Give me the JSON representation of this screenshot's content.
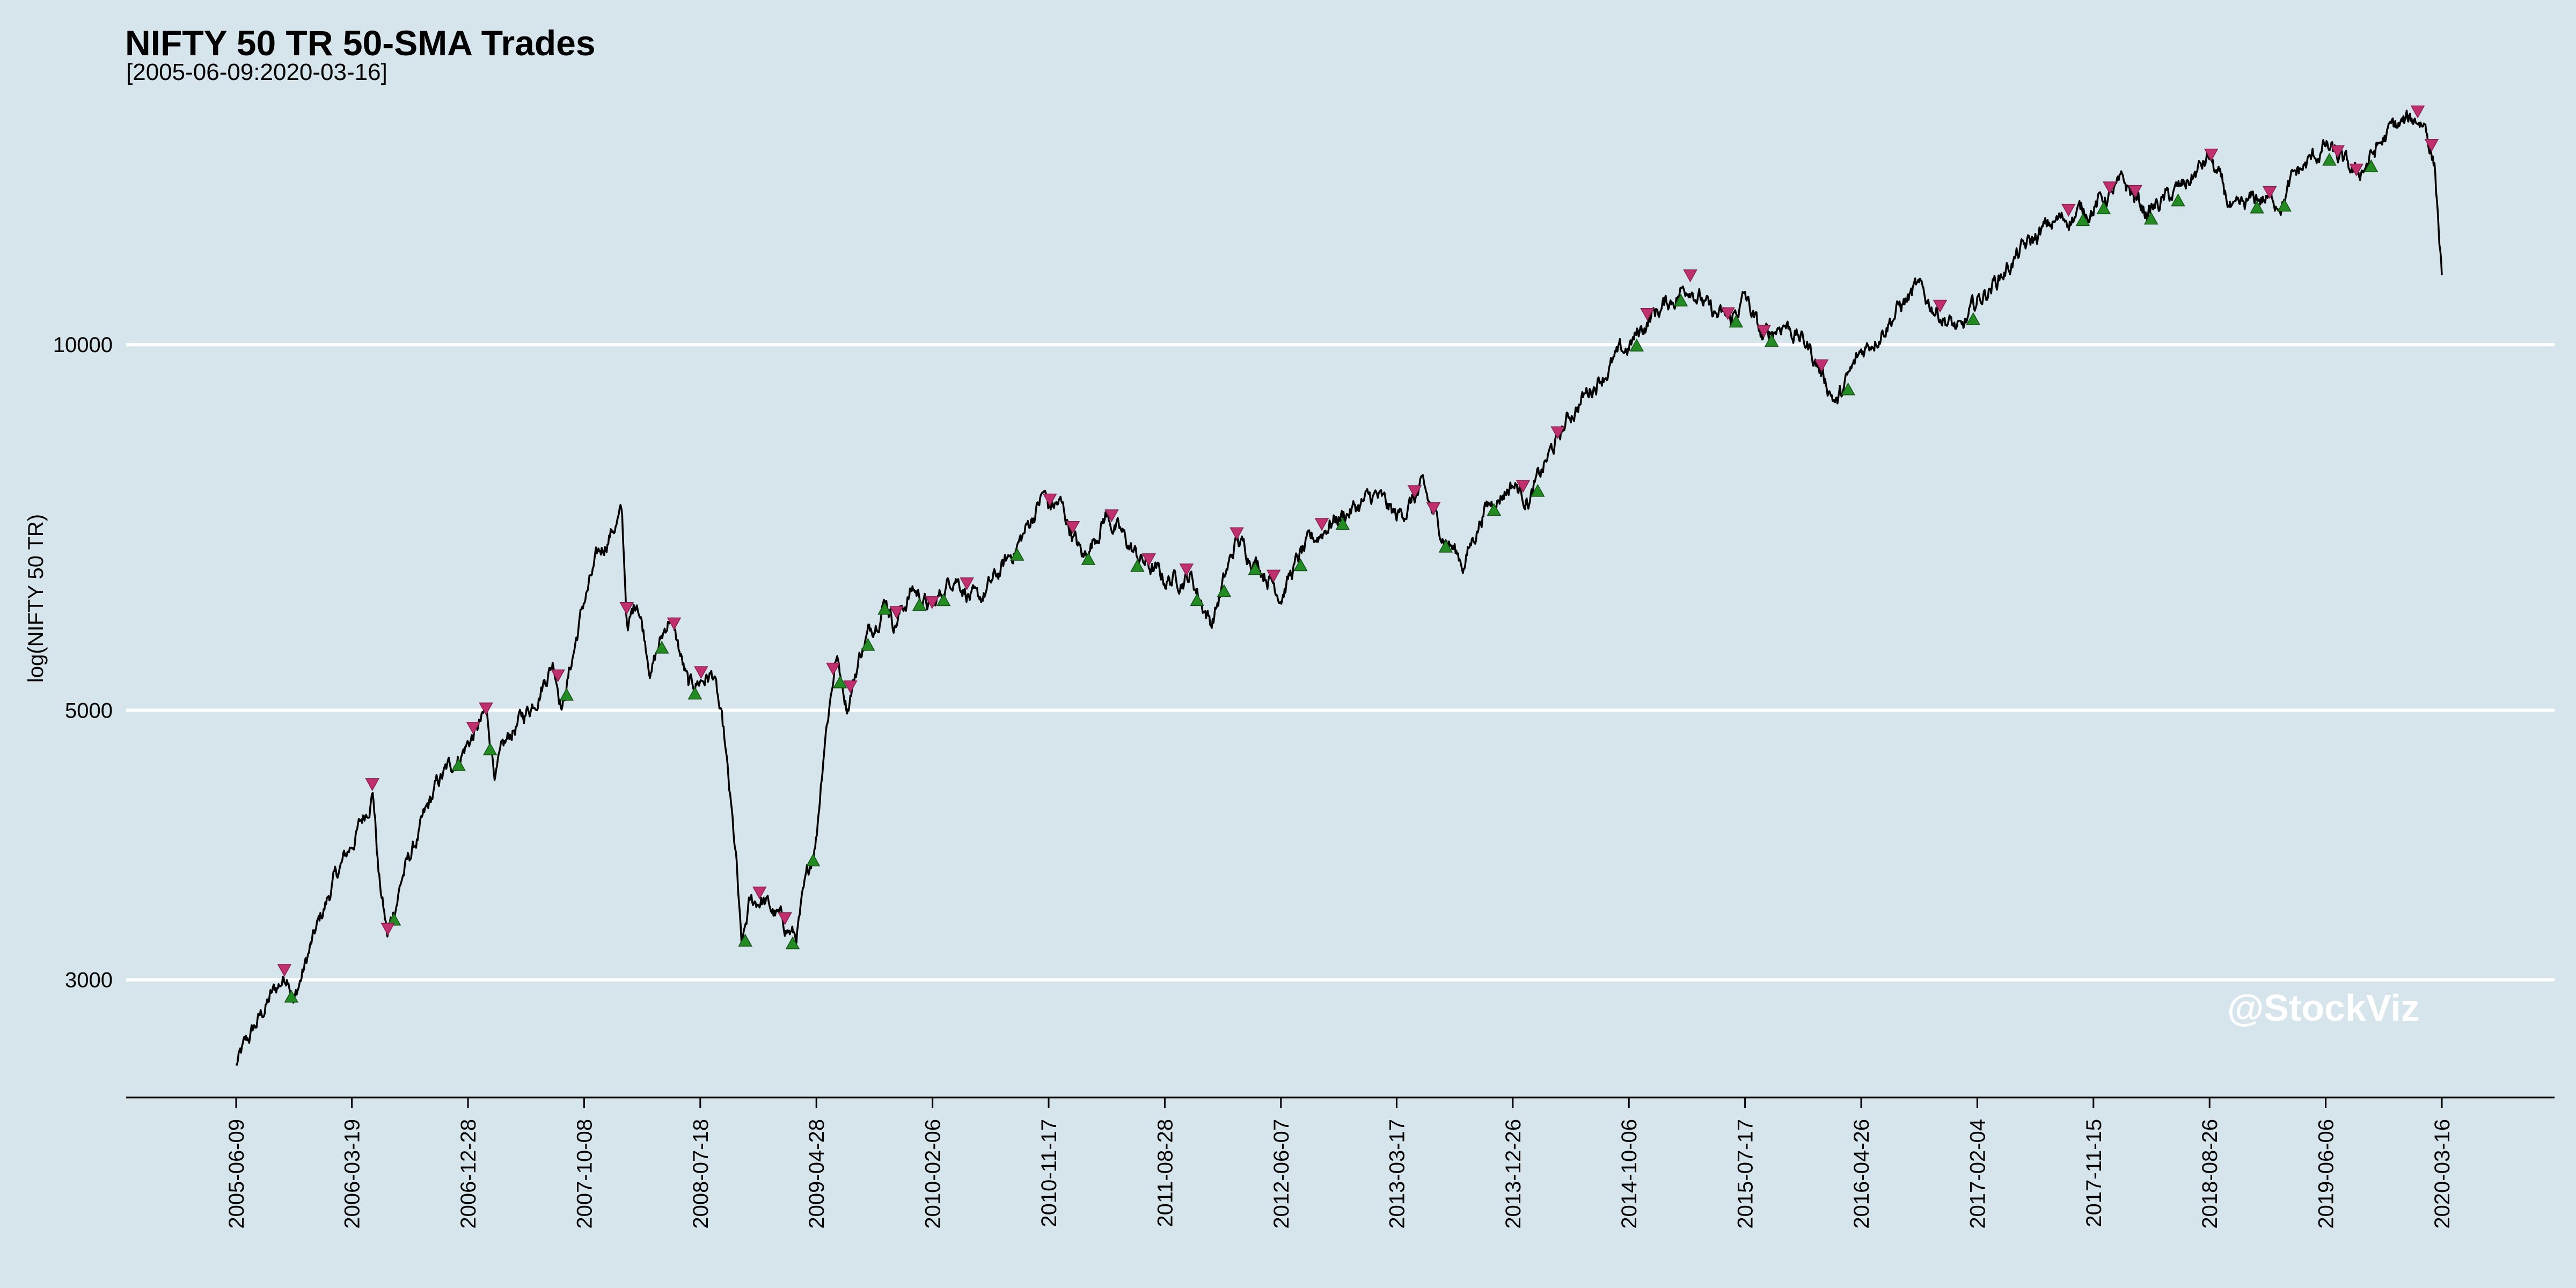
{
  "chart_data": {
    "type": "line",
    "title": "NIFTY 50 TR 50-SMA Trades",
    "subtitle": "[2005-06-09:2020-03-16]",
    "ylabel": "log(NIFTY 50 TR)",
    "xlabel": "",
    "y_scale": "log",
    "ylim": [
      2400,
      16500
    ],
    "y_ticks": [
      3000,
      5000,
      10000
    ],
    "y_tick_labels": [
      "3000",
      "5000",
      "10000"
    ],
    "x_tick_labels": [
      "2005-06-09",
      "2006-03-19",
      "2006-12-28",
      "2007-10-08",
      "2008-07-18",
      "2009-04-28",
      "2010-02-06",
      "2010-11-17",
      "2011-08-28",
      "2012-06-07",
      "2013-03-17",
      "2013-12-26",
      "2014-10-06",
      "2015-07-17",
      "2016-04-26",
      "2017-02-04",
      "2017-11-15",
      "2018-08-26",
      "2019-06-06",
      "2020-03-16"
    ],
    "x_range": [
      "2005-06-09",
      "2020-03-16"
    ],
    "grid": "horizontal",
    "legend": "none",
    "series": [
      {
        "type": "line",
        "color": "#000000",
        "points": [
          [
            "2005-06-09",
            2550
          ],
          [
            "2005-07-20",
            2720
          ],
          [
            "2005-09-01",
            2900
          ],
          [
            "2005-10-15",
            3050
          ],
          [
            "2005-10-28",
            2880
          ],
          [
            "2005-12-10",
            3200
          ],
          [
            "2006-02-01",
            3600
          ],
          [
            "2006-03-19",
            3880
          ],
          [
            "2006-04-25",
            4150
          ],
          [
            "2006-05-10",
            4310
          ],
          [
            "2006-05-24",
            3650
          ],
          [
            "2006-06-14",
            3250
          ],
          [
            "2006-07-20",
            3650
          ],
          [
            "2006-08-30",
            3950
          ],
          [
            "2006-10-15",
            4350
          ],
          [
            "2006-12-28",
            4700
          ],
          [
            "2007-02-10",
            4950
          ],
          [
            "2007-03-05",
            4450
          ],
          [
            "2007-04-15",
            4800
          ],
          [
            "2007-06-01",
            5050
          ],
          [
            "2007-07-25",
            5500
          ],
          [
            "2007-08-16",
            5050
          ],
          [
            "2007-10-08",
            6150
          ],
          [
            "2007-11-10",
            6650
          ],
          [
            "2007-12-10",
            7000
          ],
          [
            "2008-01-08",
            7250
          ],
          [
            "2008-01-22",
            5800
          ],
          [
            "2008-02-15",
            6200
          ],
          [
            "2008-03-20",
            5400
          ],
          [
            "2008-05-05",
            6000
          ],
          [
            "2008-06-20",
            5200
          ],
          [
            "2008-07-18",
            5300
          ],
          [
            "2008-08-20",
            5350
          ],
          [
            "2008-09-15",
            4700
          ],
          [
            "2008-10-15",
            3700
          ],
          [
            "2008-10-27",
            3150
          ],
          [
            "2008-11-15",
            3450
          ],
          [
            "2008-12-15",
            3500
          ],
          [
            "2009-01-15",
            3400
          ],
          [
            "2009-03-09",
            3250
          ],
          [
            "2009-04-28",
            3950
          ],
          [
            "2009-05-18",
            4750
          ],
          [
            "2009-06-15",
            5550
          ],
          [
            "2009-07-13",
            5050
          ],
          [
            "2009-08-15",
            5600
          ],
          [
            "2009-10-15",
            6200
          ],
          [
            "2009-11-05",
            5900
          ],
          [
            "2009-12-20",
            6300
          ],
          [
            "2010-02-06",
            6050
          ],
          [
            "2010-04-01",
            6500
          ],
          [
            "2010-05-25",
            6100
          ],
          [
            "2010-07-15",
            6450
          ],
          [
            "2010-09-15",
            6950
          ],
          [
            "2010-11-05",
            7550
          ],
          [
            "2010-11-17",
            7350
          ],
          [
            "2010-12-15",
            7400
          ],
          [
            "2011-02-10",
            6650
          ],
          [
            "2011-04-05",
            7250
          ],
          [
            "2011-06-20",
            6700
          ],
          [
            "2011-08-28",
            6400
          ],
          [
            "2011-10-30",
            6450
          ],
          [
            "2011-12-20",
            5900
          ],
          [
            "2012-02-20",
            6900
          ],
          [
            "2012-04-15",
            6600
          ],
          [
            "2012-06-07",
            6250
          ],
          [
            "2012-07-25",
            6700
          ],
          [
            "2012-10-05",
            7150
          ],
          [
            "2013-01-25",
            7500
          ],
          [
            "2013-03-17",
            7200
          ],
          [
            "2013-05-20",
            7600
          ],
          [
            "2013-06-25",
            7100
          ],
          [
            "2013-08-28",
            6600
          ],
          [
            "2013-10-15",
            7300
          ],
          [
            "2013-12-26",
            7700
          ],
          [
            "2014-02-05",
            7450
          ],
          [
            "2014-03-25",
            8100
          ],
          [
            "2014-05-20",
            8800
          ],
          [
            "2014-07-25",
            9400
          ],
          [
            "2014-10-06",
            9950
          ],
          [
            "2014-11-28",
            10550
          ],
          [
            "2015-01-20",
            10900
          ],
          [
            "2015-03-05",
            11250
          ],
          [
            "2015-04-25",
            10600
          ],
          [
            "2015-06-12",
            10450
          ],
          [
            "2015-07-17",
            10950
          ],
          [
            "2015-08-28",
            10100
          ],
          [
            "2015-10-20",
            10450
          ],
          [
            "2015-12-20",
            9950
          ],
          [
            "2016-02-27",
            8950
          ],
          [
            "2016-04-26",
            9850
          ],
          [
            "2016-07-25",
            10700
          ],
          [
            "2016-09-08",
            11100
          ],
          [
            "2016-11-20",
            10500
          ],
          [
            "2016-12-26",
            10200
          ],
          [
            "2017-02-04",
            10850
          ],
          [
            "2017-05-20",
            11900
          ],
          [
            "2017-08-01",
            12550
          ],
          [
            "2017-11-15",
            13000
          ],
          [
            "2018-01-29",
            13550
          ],
          [
            "2018-03-25",
            12850
          ],
          [
            "2018-06-20",
            13450
          ],
          [
            "2018-08-26",
            14250
          ],
          [
            "2018-10-25",
            12750
          ],
          [
            "2018-12-20",
            13200
          ],
          [
            "2019-02-20",
            13150
          ],
          [
            "2019-03-25",
            13800
          ],
          [
            "2019-06-06",
            14550
          ],
          [
            "2019-08-20",
            13750
          ],
          [
            "2019-11-15",
            15050
          ],
          [
            "2020-01-17",
            15350
          ],
          [
            "2020-02-05",
            15200
          ],
          [
            "2020-02-28",
            14000
          ],
          [
            "2020-03-16",
            11400
          ]
        ]
      }
    ],
    "trades": {
      "entry": {
        "marker": "triangle-up",
        "color": "#228b22",
        "dates": [
          "2005-10-22",
          "2006-06-30",
          "2006-12-05",
          "2007-02-20",
          "2007-08-26",
          "2008-04-15",
          "2008-07-05",
          "2008-11-05",
          "2009-03-01",
          "2009-04-20",
          "2009-06-25",
          "2009-09-01",
          "2009-10-12",
          "2010-01-05",
          "2010-03-05",
          "2010-09-01",
          "2011-02-22",
          "2011-06-22",
          "2011-11-15",
          "2012-01-20",
          "2012-04-05",
          "2012-07-25",
          "2012-11-05",
          "2013-07-15",
          "2013-11-10",
          "2014-02-25",
          "2014-10-25",
          "2015-02-10",
          "2015-06-25",
          "2015-09-20",
          "2016-03-25",
          "2017-01-25",
          "2017-10-20",
          "2017-12-10",
          "2018-04-05",
          "2018-06-10",
          "2018-12-20",
          "2019-02-25",
          "2019-06-15",
          "2019-09-25"
        ]
      },
      "exit": {
        "marker": "triangle-down",
        "color": "#c0306e",
        "dates": [
          "2005-10-05",
          "2006-05-08",
          "2006-06-15",
          "2007-01-10",
          "2007-02-10",
          "2007-08-05",
          "2008-01-20",
          "2008-05-15",
          "2008-07-20",
          "2008-12-10",
          "2009-02-10",
          "2009-06-08",
          "2009-07-20",
          "2009-11-10",
          "2010-02-05",
          "2010-05-01",
          "2010-11-20",
          "2011-01-15",
          "2011-04-20",
          "2011-07-20",
          "2011-10-20",
          "2012-02-20",
          "2012-05-20",
          "2012-09-15",
          "2013-04-30",
          "2013-06-15",
          "2014-01-20",
          "2014-04-15",
          "2014-11-20",
          "2015-03-05",
          "2015-06-05",
          "2015-09-01",
          "2016-01-20",
          "2016-11-05",
          "2017-09-15",
          "2017-12-25",
          "2018-02-25",
          "2018-08-30",
          "2019-01-20",
          "2019-07-05",
          "2019-08-20",
          "2020-01-17",
          "2020-02-20"
        ]
      }
    }
  },
  "watermark": "@StockViz"
}
